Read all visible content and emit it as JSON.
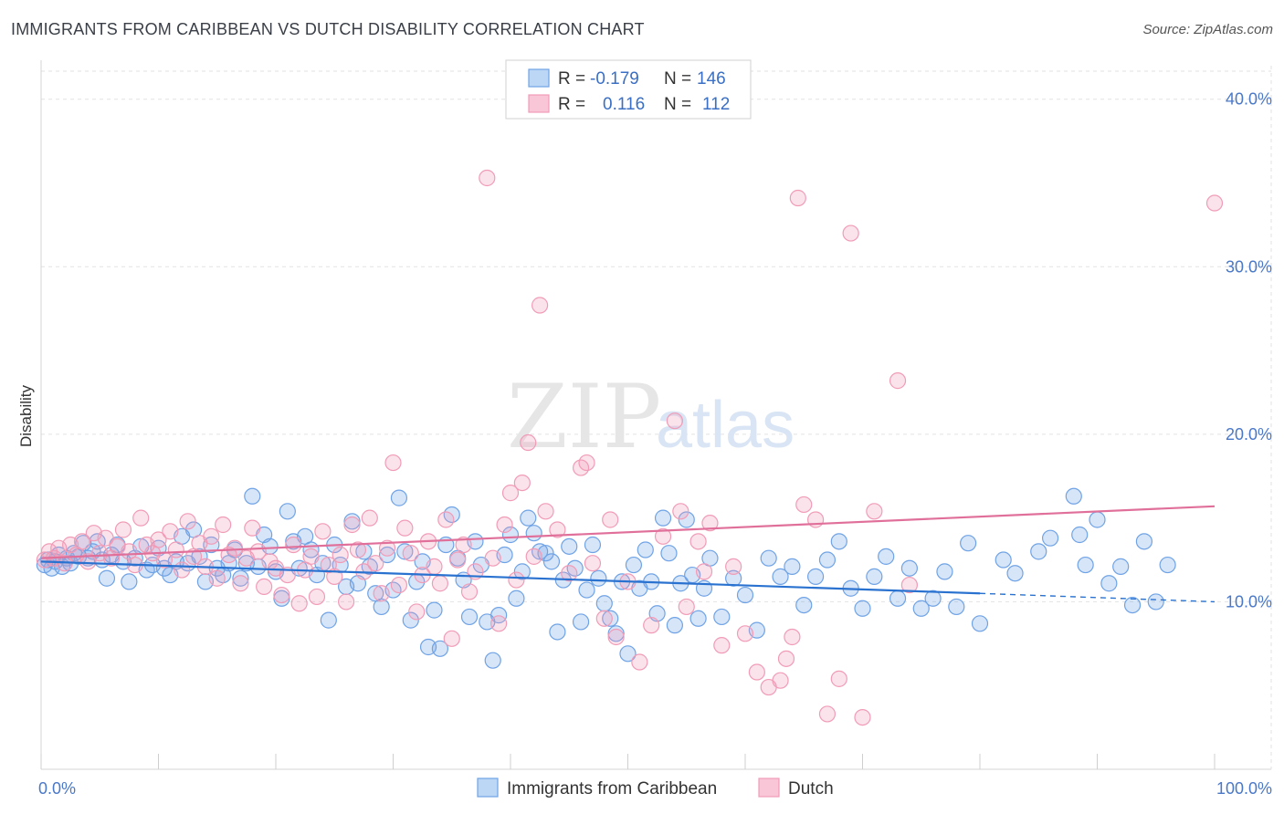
{
  "title": "IMMIGRANTS FROM CARIBBEAN VS DUTCH DISABILITY CORRELATION CHART",
  "source": "Source: ZipAtlas.com",
  "watermark": {
    "part1": "ZIP",
    "part2": "atlas"
  },
  "colors": {
    "blue": "#6fa3e6",
    "blue_line": "#2a72d0",
    "pink": "#f19cb7",
    "pink_line": "#e0709a",
    "tick": "#4a78c8"
  },
  "chart_data": {
    "type": "scatter",
    "ylabel": "Disability",
    "xlim": [
      0,
      100
    ],
    "ylim": [
      0,
      42
    ],
    "x_ticks": [
      {
        "value": 0,
        "label": "0.0%"
      },
      {
        "value": 100,
        "label": "100.0%"
      }
    ],
    "y_ticks": [
      {
        "value": 10,
        "label": "10.0%"
      },
      {
        "value": 20,
        "label": "20.0%"
      },
      {
        "value": 30,
        "label": "30.0%"
      },
      {
        "value": 40,
        "label": "40.0%"
      }
    ],
    "grid": true,
    "legend": {
      "placement": "top-center",
      "entries": [
        {
          "r_label": "R =",
          "r_value": "-0.179",
          "n_label": "N =",
          "n_value": "146"
        },
        {
          "r_label": "R =",
          "r_value": "0.116",
          "n_label": "N =",
          "n_value": "112"
        }
      ]
    },
    "bottom_legend": [
      "Immigrants from Caribbean",
      "Dutch"
    ],
    "series": [
      {
        "name": "Immigrants from Caribbean",
        "color": "#6fa3e6",
        "trend": {
          "x": [
            0,
            80
          ],
          "y": [
            12.4,
            10.5
          ],
          "dashed_to": 100,
          "dashed_y": 10.0
        },
        "points": [
          [
            0.3,
            12.2
          ],
          [
            0.6,
            12.5
          ],
          [
            0.9,
            12.0
          ],
          [
            1.2,
            12.4
          ],
          [
            1.5,
            12.8
          ],
          [
            1.8,
            12.1
          ],
          [
            2.2,
            12.6
          ],
          [
            2.5,
            12.3
          ],
          [
            2.8,
            12.9
          ],
          [
            3.2,
            12.7
          ],
          [
            3.6,
            13.5
          ],
          [
            4.0,
            12.6
          ],
          [
            4.4,
            13.0
          ],
          [
            4.8,
            13.6
          ],
          [
            5.2,
            12.5
          ],
          [
            5.6,
            11.4
          ],
          [
            6.0,
            12.8
          ],
          [
            6.5,
            13.4
          ],
          [
            7.0,
            12.4
          ],
          [
            7.5,
            11.2
          ],
          [
            8.0,
            12.6
          ],
          [
            8.5,
            13.3
          ],
          [
            9.0,
            11.9
          ],
          [
            9.5,
            12.2
          ],
          [
            10.0,
            13.2
          ],
          [
            10.5,
            12.0
          ],
          [
            11.0,
            11.6
          ],
          [
            11.5,
            12.4
          ],
          [
            12.0,
            13.9
          ],
          [
            12.5,
            12.3
          ],
          [
            13.0,
            14.3
          ],
          [
            13.5,
            12.7
          ],
          [
            14.0,
            11.2
          ],
          [
            14.5,
            13.4
          ],
          [
            15.0,
            12.0
          ],
          [
            15.5,
            11.6
          ],
          [
            16.0,
            12.3
          ],
          [
            16.5,
            13.1
          ],
          [
            17.0,
            11.4
          ],
          [
            17.5,
            12.3
          ],
          [
            18.0,
            16.3
          ],
          [
            18.5,
            12.1
          ],
          [
            19.0,
            14.0
          ],
          [
            19.5,
            13.3
          ],
          [
            20.0,
            11.8
          ],
          [
            20.5,
            10.2
          ],
          [
            21.0,
            15.4
          ],
          [
            21.5,
            13.6
          ],
          [
            22.0,
            12.0
          ],
          [
            22.5,
            13.9
          ],
          [
            23.0,
            13.1
          ],
          [
            23.5,
            11.6
          ],
          [
            24.0,
            12.3
          ],
          [
            24.5,
            8.9
          ],
          [
            25.0,
            13.4
          ],
          [
            25.5,
            12.2
          ],
          [
            26.0,
            10.9
          ],
          [
            26.5,
            14.8
          ],
          [
            27.0,
            11.1
          ],
          [
            27.5,
            13.0
          ],
          [
            28.0,
            12.1
          ],
          [
            28.5,
            10.5
          ],
          [
            29.0,
            9.7
          ],
          [
            29.5,
            12.8
          ],
          [
            30.0,
            10.7
          ],
          [
            30.5,
            16.2
          ],
          [
            31.0,
            13.0
          ],
          [
            31.5,
            8.9
          ],
          [
            32.0,
            11.2
          ],
          [
            32.5,
            12.4
          ],
          [
            33.0,
            7.3
          ],
          [
            33.5,
            9.5
          ],
          [
            34.0,
            7.2
          ],
          [
            34.5,
            13.4
          ],
          [
            35.0,
            15.2
          ],
          [
            35.5,
            12.6
          ],
          [
            36.0,
            11.3
          ],
          [
            36.5,
            9.1
          ],
          [
            37.0,
            13.6
          ],
          [
            37.5,
            12.2
          ],
          [
            38.0,
            8.8
          ],
          [
            38.5,
            6.5
          ],
          [
            39.0,
            9.2
          ],
          [
            39.5,
            12.8
          ],
          [
            40.0,
            14.0
          ],
          [
            40.5,
            10.2
          ],
          [
            41.0,
            11.8
          ],
          [
            41.5,
            15.0
          ],
          [
            42.0,
            14.1
          ],
          [
            42.5,
            13.0
          ],
          [
            43.0,
            12.9
          ],
          [
            43.5,
            12.4
          ],
          [
            44.0,
            8.2
          ],
          [
            44.5,
            11.3
          ],
          [
            45.0,
            13.3
          ],
          [
            45.5,
            12.0
          ],
          [
            46.0,
            8.8
          ],
          [
            46.5,
            10.7
          ],
          [
            47.0,
            13.4
          ],
          [
            47.5,
            11.4
          ],
          [
            48.0,
            9.9
          ],
          [
            48.5,
            9.0
          ],
          [
            49.0,
            8.1
          ],
          [
            49.5,
            11.2
          ],
          [
            50.0,
            6.9
          ],
          [
            50.5,
            12.2
          ],
          [
            51.0,
            10.8
          ],
          [
            51.5,
            13.1
          ],
          [
            52.0,
            11.2
          ],
          [
            52.5,
            9.3
          ],
          [
            53.0,
            15.0
          ],
          [
            53.5,
            12.9
          ],
          [
            54.0,
            8.6
          ],
          [
            54.5,
            11.1
          ],
          [
            55.0,
            14.9
          ],
          [
            55.5,
            11.6
          ],
          [
            56.0,
            9.0
          ],
          [
            56.5,
            10.8
          ],
          [
            57.0,
            12.6
          ],
          [
            58.0,
            9.1
          ],
          [
            59.0,
            11.4
          ],
          [
            60.0,
            10.4
          ],
          [
            61.0,
            8.3
          ],
          [
            62.0,
            12.6
          ],
          [
            63.0,
            11.5
          ],
          [
            64.0,
            12.1
          ],
          [
            65.0,
            9.8
          ],
          [
            66.0,
            11.5
          ],
          [
            67.0,
            12.5
          ],
          [
            68.0,
            13.6
          ],
          [
            69.0,
            10.8
          ],
          [
            70.0,
            9.6
          ],
          [
            71.0,
            11.5
          ],
          [
            72.0,
            12.7
          ],
          [
            73.0,
            10.2
          ],
          [
            74.0,
            12.0
          ],
          [
            75.0,
            9.6
          ],
          [
            76.0,
            10.2
          ],
          [
            77.0,
            11.8
          ],
          [
            78.0,
            9.7
          ],
          [
            79.0,
            13.5
          ],
          [
            80.0,
            8.7
          ],
          [
            82.0,
            12.5
          ],
          [
            83.0,
            11.7
          ],
          [
            85.0,
            13.0
          ],
          [
            86.0,
            13.8
          ],
          [
            88.0,
            16.3
          ],
          [
            88.5,
            14.0
          ],
          [
            89.0,
            12.2
          ],
          [
            90.0,
            14.9
          ],
          [
            91.0,
            11.1
          ],
          [
            92.0,
            12.1
          ],
          [
            93.0,
            9.8
          ],
          [
            94.0,
            13.6
          ],
          [
            95.0,
            10.0
          ],
          [
            96.0,
            12.2
          ]
        ]
      },
      {
        "name": "Dutch",
        "color": "#f19cb7",
        "trend": {
          "x": [
            0,
            100
          ],
          "y": [
            12.6,
            15.7
          ]
        },
        "points": [
          [
            0.3,
            12.5
          ],
          [
            0.7,
            13.0
          ],
          [
            1.1,
            12.6
          ],
          [
            1.5,
            13.2
          ],
          [
            2.0,
            12.3
          ],
          [
            2.5,
            13.4
          ],
          [
            3.0,
            12.8
          ],
          [
            3.5,
            13.6
          ],
          [
            4.0,
            12.4
          ],
          [
            4.5,
            14.1
          ],
          [
            5.0,
            12.9
          ],
          [
            5.5,
            13.8
          ],
          [
            6.0,
            12.6
          ],
          [
            6.5,
            13.3
          ],
          [
            7.0,
            14.3
          ],
          [
            7.5,
            13.0
          ],
          [
            8.0,
            12.2
          ],
          [
            8.5,
            15.0
          ],
          [
            9.0,
            13.4
          ],
          [
            9.5,
            12.9
          ],
          [
            10.0,
            13.7
          ],
          [
            10.5,
            12.5
          ],
          [
            11.0,
            14.2
          ],
          [
            11.5,
            13.1
          ],
          [
            12.0,
            11.9
          ],
          [
            12.5,
            14.8
          ],
          [
            13.0,
            12.7
          ],
          [
            13.5,
            13.5
          ],
          [
            14.0,
            12.1
          ],
          [
            14.5,
            13.9
          ],
          [
            15.0,
            11.4
          ],
          [
            15.5,
            14.6
          ],
          [
            16.0,
            12.8
          ],
          [
            16.5,
            13.2
          ],
          [
            17.0,
            11.1
          ],
          [
            17.5,
            12.6
          ],
          [
            18.0,
            14.4
          ],
          [
            18.5,
            13.0
          ],
          [
            19.0,
            10.9
          ],
          [
            19.5,
            12.4
          ],
          [
            20.0,
            12.0
          ],
          [
            20.5,
            10.4
          ],
          [
            21.0,
            11.6
          ],
          [
            21.5,
            13.4
          ],
          [
            22.0,
            9.9
          ],
          [
            22.5,
            11.9
          ],
          [
            23.0,
            12.7
          ],
          [
            23.5,
            10.3
          ],
          [
            24.0,
            14.2
          ],
          [
            24.5,
            12.2
          ],
          [
            25.0,
            11.5
          ],
          [
            25.5,
            12.8
          ],
          [
            26.0,
            10.0
          ],
          [
            26.5,
            14.6
          ],
          [
            27.0,
            13.1
          ],
          [
            27.5,
            11.8
          ],
          [
            28.0,
            15.0
          ],
          [
            28.5,
            12.3
          ],
          [
            29.0,
            10.5
          ],
          [
            29.5,
            13.2
          ],
          [
            30.0,
            18.3
          ],
          [
            30.5,
            11.0
          ],
          [
            31.0,
            14.4
          ],
          [
            31.5,
            12.9
          ],
          [
            32.0,
            9.4
          ],
          [
            32.5,
            11.6
          ],
          [
            33.0,
            13.6
          ],
          [
            33.5,
            12.1
          ],
          [
            34.0,
            11.1
          ],
          [
            34.5,
            14.9
          ],
          [
            35.0,
            7.8
          ],
          [
            35.5,
            12.5
          ],
          [
            36.0,
            13.4
          ],
          [
            36.5,
            10.6
          ],
          [
            37.0,
            11.8
          ],
          [
            38.0,
            35.3
          ],
          [
            38.5,
            12.6
          ],
          [
            39.0,
            8.7
          ],
          [
            39.5,
            14.6
          ],
          [
            40.0,
            16.5
          ],
          [
            40.5,
            11.3
          ],
          [
            41.0,
            17.1
          ],
          [
            41.5,
            19.5
          ],
          [
            42.0,
            12.7
          ],
          [
            42.5,
            27.7
          ],
          [
            43.0,
            15.4
          ],
          [
            44.0,
            14.3
          ],
          [
            45.0,
            11.7
          ],
          [
            46.0,
            18.0
          ],
          [
            46.5,
            18.3
          ],
          [
            47.0,
            12.3
          ],
          [
            48.0,
            9.0
          ],
          [
            48.5,
            14.9
          ],
          [
            49.0,
            7.9
          ],
          [
            50.0,
            11.2
          ],
          [
            51.0,
            6.4
          ],
          [
            52.0,
            8.6
          ],
          [
            53.0,
            13.9
          ],
          [
            54.0,
            20.8
          ],
          [
            54.5,
            15.4
          ],
          [
            55.0,
            9.7
          ],
          [
            56.0,
            13.6
          ],
          [
            56.5,
            11.8
          ],
          [
            57.0,
            14.7
          ],
          [
            58.0,
            7.4
          ],
          [
            59.0,
            12.1
          ],
          [
            60.0,
            8.1
          ],
          [
            61.0,
            5.8
          ],
          [
            62.0,
            4.9
          ],
          [
            63.0,
            5.3
          ],
          [
            63.5,
            6.6
          ],
          [
            64.0,
            7.9
          ],
          [
            64.5,
            34.1
          ],
          [
            65.0,
            15.8
          ],
          [
            66.0,
            14.9
          ],
          [
            67.0,
            3.3
          ],
          [
            68.0,
            5.4
          ],
          [
            69.0,
            32.0
          ],
          [
            70.0,
            3.1
          ],
          [
            71.0,
            15.4
          ],
          [
            73.0,
            23.2
          ],
          [
            74.0,
            11.0
          ],
          [
            100.0,
            33.8
          ]
        ]
      }
    ]
  }
}
